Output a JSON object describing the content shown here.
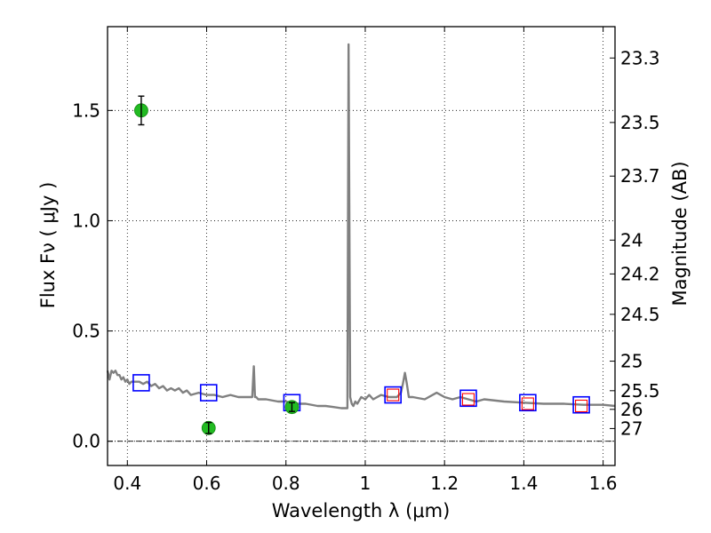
{
  "chart_data": {
    "type": "scatter",
    "xlabel": "Wavelength  λ (μm)",
    "ylabel": "Flux  Fν  ( μJy )",
    "y2label": "Magnitude (AB)",
    "xlim": [
      0.35,
      1.63
    ],
    "ylim": [
      -0.11,
      1.88
    ],
    "grid": true,
    "grid_style": "dotted",
    "zero_line": true,
    "x_ticks": [
      0.4,
      0.6,
      0.8,
      1.0,
      1.2,
      1.4,
      1.6
    ],
    "x_tick_labels": [
      "0.4",
      "0.6",
      "0.8",
      "1",
      "1.2",
      "1.4",
      "1.6"
    ],
    "y_ticks": [
      0.0,
      0.5,
      1.0,
      1.5
    ],
    "y_tick_labels": [
      "0.0",
      "0.5",
      "1.0",
      "1.5"
    ],
    "y2_ticks": [
      23.3,
      23.5,
      23.7,
      24,
      24.2,
      24.5,
      25,
      25.5,
      26,
      27
    ],
    "y2_tick_labels": [
      "23.3",
      "23.5",
      "23.7",
      "24",
      "24.2",
      "24.5",
      "25",
      "25.5",
      "26",
      "27"
    ],
    "series": [
      {
        "kind": "spectrum",
        "color": "#808080",
        "x": [
          0.35,
          0.355,
          0.36,
          0.365,
          0.37,
          0.375,
          0.38,
          0.385,
          0.39,
          0.395,
          0.4,
          0.405,
          0.41,
          0.42,
          0.43,
          0.44,
          0.45,
          0.46,
          0.47,
          0.48,
          0.49,
          0.5,
          0.51,
          0.52,
          0.53,
          0.54,
          0.55,
          0.56,
          0.58,
          0.6,
          0.62,
          0.64,
          0.66,
          0.68,
          0.7,
          0.715,
          0.719,
          0.722,
          0.725,
          0.73,
          0.75,
          0.78,
          0.8,
          0.82,
          0.85,
          0.88,
          0.9,
          0.92,
          0.94,
          0.955,
          0.958,
          0.962,
          0.966,
          0.97,
          0.975,
          0.98,
          0.99,
          1.0,
          1.01,
          1.02,
          1.04,
          1.06,
          1.08,
          1.09,
          1.095,
          1.1,
          1.105,
          1.11,
          1.12,
          1.15,
          1.18,
          1.2,
          1.22,
          1.24,
          1.26,
          1.28,
          1.3,
          1.35,
          1.4,
          1.45,
          1.5,
          1.55,
          1.6,
          1.63
        ],
        "y": [
          0.32,
          0.28,
          0.32,
          0.31,
          0.32,
          0.3,
          0.3,
          0.28,
          0.29,
          0.27,
          0.28,
          0.26,
          0.27,
          0.27,
          0.27,
          0.26,
          0.27,
          0.25,
          0.26,
          0.24,
          0.25,
          0.23,
          0.24,
          0.23,
          0.24,
          0.22,
          0.23,
          0.21,
          0.22,
          0.21,
          0.21,
          0.2,
          0.21,
          0.2,
          0.2,
          0.2,
          0.34,
          0.2,
          0.2,
          0.19,
          0.19,
          0.18,
          0.18,
          0.17,
          0.17,
          0.16,
          0.16,
          0.155,
          0.15,
          0.15,
          1.8,
          0.2,
          0.17,
          0.16,
          0.18,
          0.17,
          0.2,
          0.19,
          0.21,
          0.19,
          0.21,
          0.2,
          0.2,
          0.22,
          0.26,
          0.31,
          0.26,
          0.2,
          0.2,
          0.19,
          0.22,
          0.2,
          0.19,
          0.2,
          0.19,
          0.18,
          0.19,
          0.18,
          0.175,
          0.17,
          0.17,
          0.165,
          0.165,
          0.16
        ]
      },
      {
        "kind": "open-square",
        "color": "#0000ff",
        "x": [
          0.435,
          0.605,
          0.815,
          1.07,
          1.26,
          1.41,
          1.545
        ],
        "y": [
          0.265,
          0.22,
          0.175,
          0.21,
          0.195,
          0.175,
          0.165
        ]
      },
      {
        "kind": "open-square-small",
        "color": "#ff0000",
        "x": [
          1.07,
          1.26,
          1.41,
          1.545
        ],
        "y": [
          0.21,
          0.19,
          0.17,
          0.16
        ]
      },
      {
        "kind": "circle-with-errorbar",
        "color": "#22bb22",
        "x": [
          0.435,
          0.605,
          0.815
        ],
        "y": [
          1.5,
          0.06,
          0.155
        ],
        "yerr": [
          0.065,
          0.025,
          0.02
        ]
      }
    ]
  }
}
